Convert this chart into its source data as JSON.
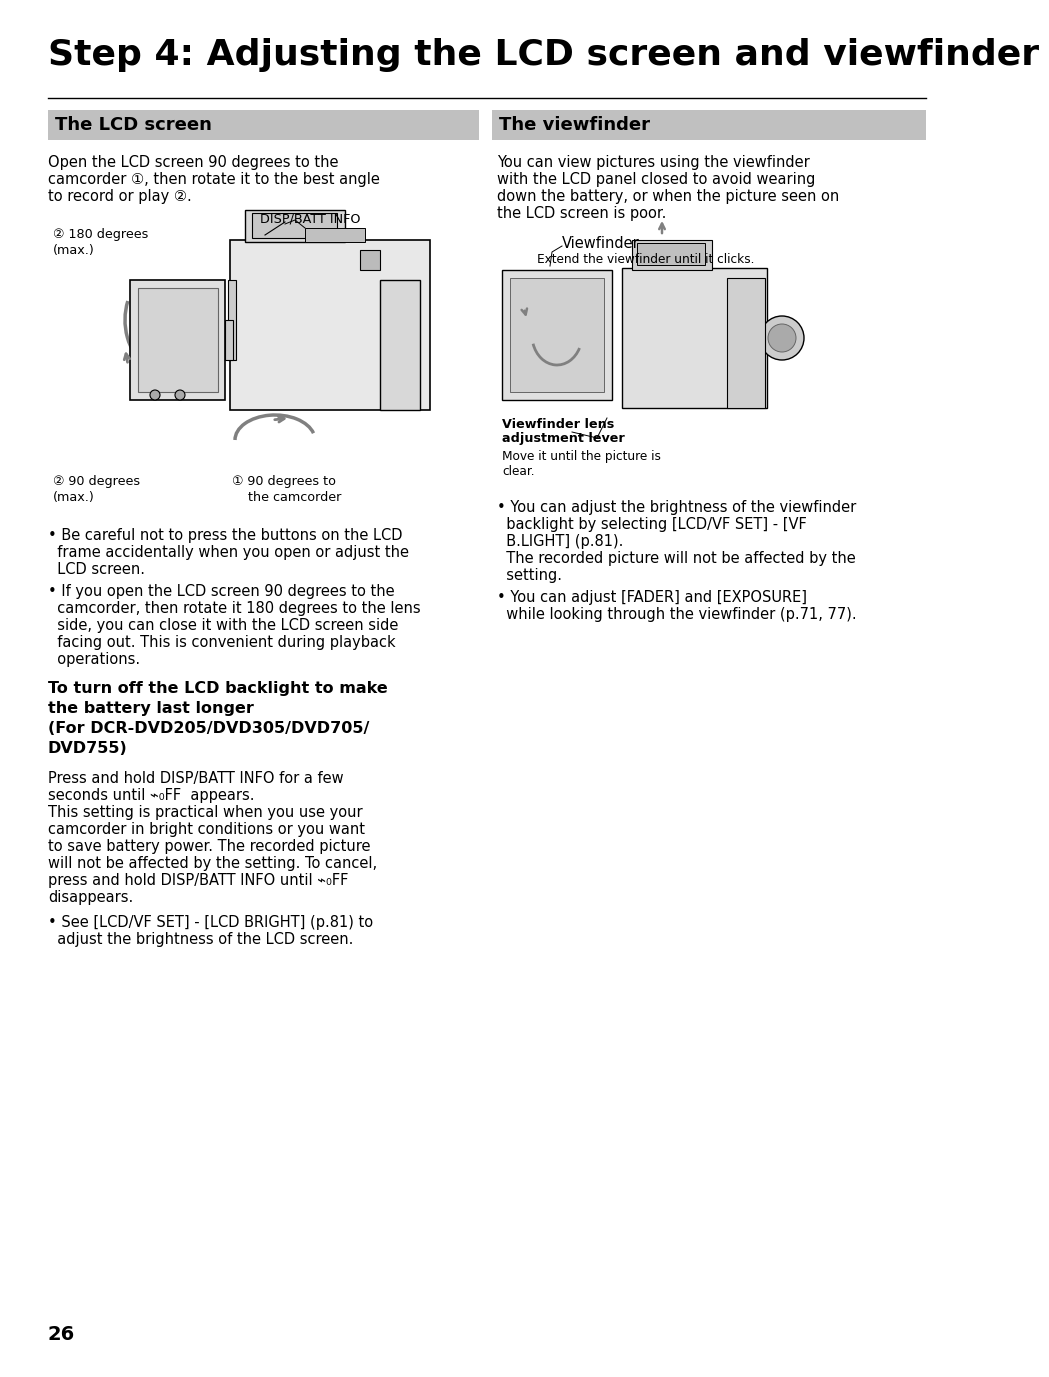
{
  "page_bg": "#ffffff",
  "title": "Step 4: Adjusting the LCD screen and viewfinder",
  "title_fontsize": 26,
  "left_header": "The LCD screen",
  "right_header": "The viewfinder",
  "header_bg": "#c0c0c0",
  "header_fontsize": 13,
  "lcd_intro_line1": "Open the LCD screen 90 degrees to the",
  "lcd_intro_line2": "camcorder ①, then rotate it to the best angle",
  "lcd_intro_line3": "to record or play ②.",
  "disp_label": "DISP/BATT INFO",
  "label_180deg": "② 180 degrees",
  "label_180deg2": "(max.)",
  "label_90deg_bottom": "② 90 degrees",
  "label_90deg_bottom2": "(max.)",
  "label_90deg_right1": "① 90 degrees to",
  "label_90deg_right2": "    the camcorder",
  "bullet1_lcd_line1": "• Be careful not to press the buttons on the LCD",
  "bullet1_lcd_line2": "  frame accidentally when you open or adjust the",
  "bullet1_lcd_line3": "  LCD screen.",
  "bullet2_lcd_line1": "• If you open the LCD screen 90 degrees to the",
  "bullet2_lcd_line2": "  camcorder, then rotate it 180 degrees to the lens",
  "bullet2_lcd_line3": "  side, you can close it with the LCD screen side",
  "bullet2_lcd_line4": "  facing out. This is convenient during playback",
  "bullet2_lcd_line5": "  operations.",
  "bold_heading_line1": "To turn off the LCD backlight to make",
  "bold_heading_line2": "the battery last longer",
  "bold_heading_line3": "(For DCR-DVD205/DVD305/DVD705/",
  "bold_heading_line4": "DVD755)",
  "para2_line1": "Press and hold DISP/BATT INFO for a few",
  "para2_line2": "seconds until ⌁₀FF  appears.",
  "para2_line3": "This setting is practical when you use your",
  "para2_line4": "camcorder in bright conditions or you want",
  "para2_line5": "to save battery power. The recorded picture",
  "para2_line6": "will not be affected by the setting. To cancel,",
  "para2_line7": "press and hold DISP/BATT INFO until ⌁₀FF",
  "para2_line8": "disappears.",
  "bullet3_lcd_line1": "• See [LCD/VF SET] - [LCD BRIGHT] (p.81) to",
  "bullet3_lcd_line2": "  adjust the brightness of the LCD screen.",
  "vf_intro_line1": "You can view pictures using the viewfinder",
  "vf_intro_line2": "with the LCD panel closed to avoid wearing",
  "vf_intro_line3": "down the battery, or when the picture seen on",
  "vf_intro_line4": "the LCD screen is poor.",
  "vf_label": "Viewfinder",
  "vf_sublabel": "Extend the viewfinder until it clicks.",
  "vf_lens_label1": "Viewfinder lens",
  "vf_lens_label2": "adjustment lever",
  "vf_move_label1": "Move it until the picture is",
  "vf_move_label2": "clear.",
  "bullet1_vf_line1": "• You can adjust the brightness of the viewfinder",
  "bullet1_vf_line2": "  backlight by selecting [LCD/VF SET] - [VF",
  "bullet1_vf_line3": "  B.LIGHT] (p.81).",
  "bullet1_vf_line4": "  The recorded picture will not be affected by the",
  "bullet1_vf_line5": "  setting.",
  "bullet2_vf_line1": "• You can adjust [FADER] and [EXPOSURE]",
  "bullet2_vf_line2": "  while looking through the viewfinder (p.71, 77).",
  "page_number": "26",
  "body_fontsize": 10.5,
  "small_fontsize": 9.2,
  "bold_fontsize": 11.5
}
